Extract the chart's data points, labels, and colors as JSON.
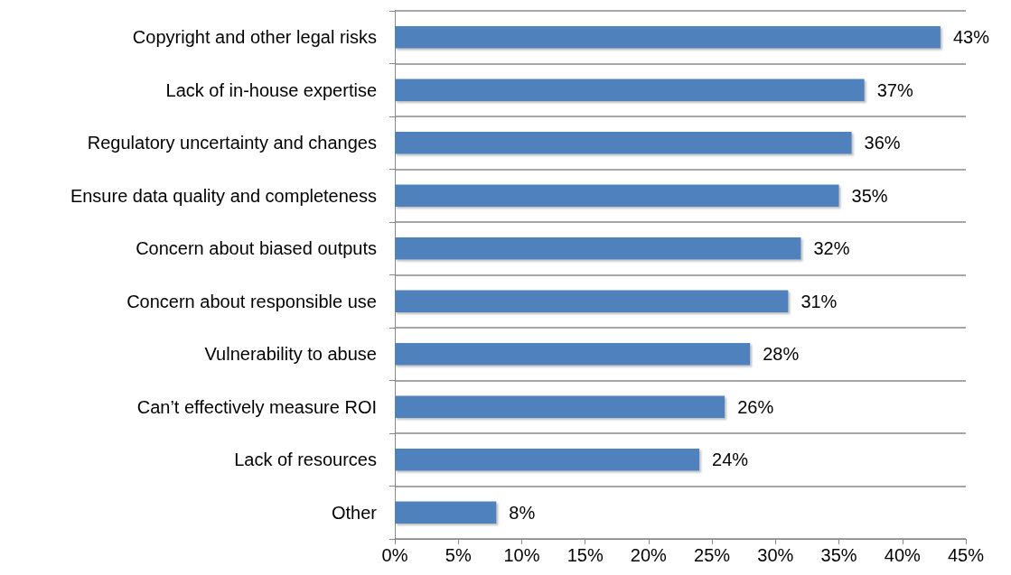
{
  "chart_data": {
    "type": "bar",
    "orientation": "horizontal",
    "categories": [
      "Copyright and other legal risks",
      "Lack of in-house expertise",
      "Regulatory uncertainty and changes",
      "Ensure data quality and completeness",
      "Concern about biased outputs",
      "Concern about responsible use",
      "Vulnerability to abuse",
      "Can’t effectively measure ROI",
      "Lack of resources",
      "Other"
    ],
    "values": [
      43,
      37,
      36,
      35,
      32,
      31,
      28,
      26,
      24,
      8
    ],
    "value_labels": [
      "43%",
      "37%",
      "36%",
      "35%",
      "32%",
      "31%",
      "28%",
      "26%",
      "24%",
      "8%"
    ],
    "color": "#4f81bd",
    "xlim": [
      0,
      45
    ],
    "xticks": [
      {
        "value": 0,
        "label": "0%"
      },
      {
        "value": 5,
        "label": "5%"
      },
      {
        "value": 10,
        "label": "10%"
      },
      {
        "value": 15,
        "label": "15%"
      },
      {
        "value": 20,
        "label": "20%"
      },
      {
        "value": 25,
        "label": "25%"
      },
      {
        "value": 30,
        "label": "30%"
      },
      {
        "value": 35,
        "label": "35%"
      },
      {
        "value": 40,
        "label": "40%"
      },
      {
        "value": 45,
        "label": "45%"
      }
    ],
    "grid": "y"
  }
}
